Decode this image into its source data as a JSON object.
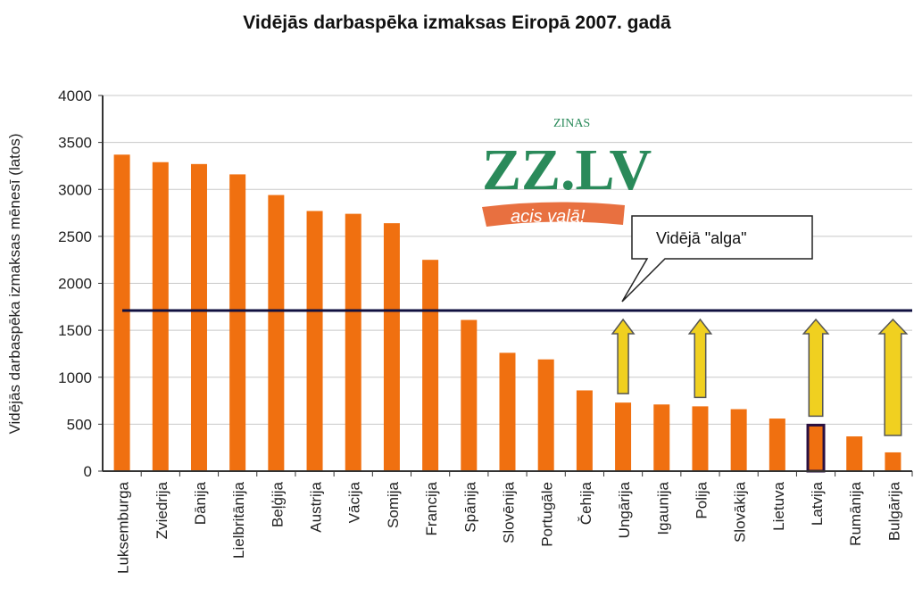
{
  "chart_data": {
    "type": "bar",
    "title": "Vidējās darbaspēka izmaksas Eiropā 2007. gadā",
    "ylabel": "Vidējās darbaspēka izmaksas mēnesī (latos)",
    "xlabel": "",
    "ylim": [
      0,
      4000
    ],
    "yticks": [
      0,
      500,
      1000,
      1500,
      2000,
      2500,
      3000,
      3500,
      4000
    ],
    "grid": true,
    "categories": [
      "Luksemburga",
      "Zviedrija",
      "Dānija",
      "Lielbritānija",
      "Beļģija",
      "Austrija",
      "Vācija",
      "Somija",
      "Francija",
      "Spānija",
      "Slovēnija",
      "Portugāle",
      "Čehija",
      "Ungārija",
      "Igaunija",
      "Polija",
      "Slovākija",
      "Lietuva",
      "Latvija",
      "Rumānija",
      "Bulgārija"
    ],
    "values": [
      3370,
      3290,
      3270,
      3160,
      2940,
      2770,
      2740,
      2640,
      2250,
      1610,
      1260,
      1190,
      860,
      730,
      710,
      690,
      660,
      560,
      490,
      370,
      200
    ],
    "bar_color": "#f07010",
    "highlight": {
      "category": "Latvija",
      "border_color": "#2a1040"
    },
    "reference_line": {
      "value": 1710,
      "label": "Vidējā \"alga\"",
      "color": "#101040"
    },
    "arrows": {
      "color": "#f0d020",
      "categories": [
        "Ungārija",
        "Polija",
        "Latvija",
        "Bulgārija"
      ]
    }
  },
  "watermark": {
    "logo": "ZZ.LV",
    "small": "ZINAS",
    "slogan": "acis vaļā!"
  }
}
